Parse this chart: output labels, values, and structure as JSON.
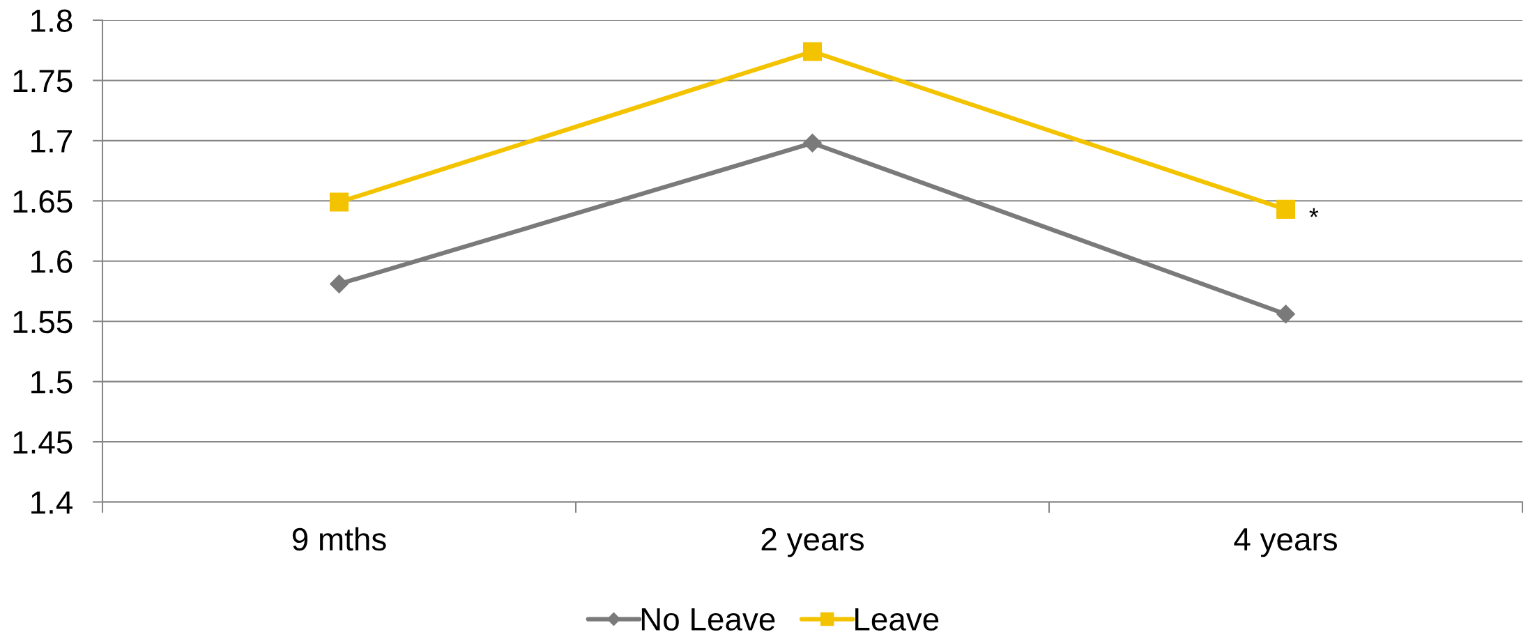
{
  "chart_data": {
    "type": "line",
    "categories": [
      "9 mths",
      "2 years",
      "4 years"
    ],
    "series": [
      {
        "name": "No Leave",
        "color": "#7a7a7a",
        "marker": "diamond",
        "values": [
          1.581,
          1.698,
          1.556
        ]
      },
      {
        "name": "Leave",
        "color": "#f4c300",
        "marker": "square",
        "values": [
          1.649,
          1.774,
          1.643
        ]
      }
    ],
    "ylim": [
      1.4,
      1.8
    ],
    "yticks": [
      1.4,
      1.45,
      1.5,
      1.55,
      1.6,
      1.65,
      1.7,
      1.75,
      1.8
    ],
    "grid": "y",
    "legend": "bottom",
    "line_style": "solid",
    "annotations": [
      {
        "text": "*",
        "x": "4 years",
        "y": 1.643
      }
    ]
  }
}
